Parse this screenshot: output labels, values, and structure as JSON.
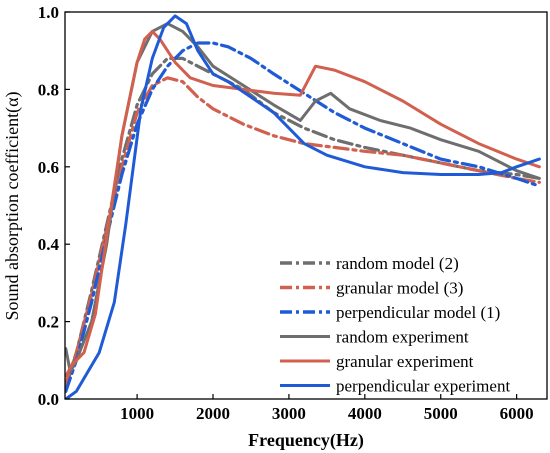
{
  "chart_data": {
    "type": "line",
    "xlabel": "Frequency(Hz)",
    "ylabel": "Sound absorption coefficient(α)",
    "xlim": [
      50,
      6400
    ],
    "ylim": [
      0,
      1.0
    ],
    "x_ticks": [
      1000,
      2000,
      3000,
      4000,
      5000,
      6000
    ],
    "y_ticks": [
      0.0,
      0.2,
      0.4,
      0.6,
      0.8,
      1.0
    ],
    "x_tick_labels": [
      "1000",
      "2000",
      "3000",
      "4000",
      "5000",
      "6000"
    ],
    "y_tick_labels": [
      "0.0",
      "0.2",
      "0.4",
      "0.6",
      "0.8",
      "1.0"
    ],
    "legend_position": "bottom-right",
    "series": [
      {
        "name": "random model (2)",
        "color": "#6e6e6e",
        "style": "dashdot",
        "points": [
          [
            60,
            0.03
          ],
          [
            200,
            0.12
          ],
          [
            400,
            0.28
          ],
          [
            600,
            0.45
          ],
          [
            800,
            0.62
          ],
          [
            1000,
            0.76
          ],
          [
            1200,
            0.84
          ],
          [
            1400,
            0.88
          ],
          [
            1600,
            0.88
          ],
          [
            1800,
            0.86
          ],
          [
            2000,
            0.84
          ],
          [
            2400,
            0.8
          ],
          [
            2800,
            0.74
          ],
          [
            3200,
            0.7
          ],
          [
            3600,
            0.67
          ],
          [
            4000,
            0.65
          ],
          [
            4500,
            0.63
          ],
          [
            5000,
            0.61
          ],
          [
            5500,
            0.59
          ],
          [
            6000,
            0.58
          ],
          [
            6300,
            0.57
          ]
        ]
      },
      {
        "name": "granular model (3)",
        "color": "#d2604f",
        "style": "dashdot",
        "points": [
          [
            60,
            0.04
          ],
          [
            200,
            0.12
          ],
          [
            400,
            0.27
          ],
          [
            600,
            0.44
          ],
          [
            800,
            0.6
          ],
          [
            1000,
            0.74
          ],
          [
            1200,
            0.81
          ],
          [
            1400,
            0.83
          ],
          [
            1600,
            0.82
          ],
          [
            1800,
            0.78
          ],
          [
            2000,
            0.75
          ],
          [
            2400,
            0.71
          ],
          [
            2800,
            0.68
          ],
          [
            3200,
            0.66
          ],
          [
            3600,
            0.65
          ],
          [
            4000,
            0.64
          ],
          [
            4500,
            0.63
          ],
          [
            5000,
            0.61
          ],
          [
            5500,
            0.59
          ],
          [
            6000,
            0.57
          ],
          [
            6300,
            0.56
          ]
        ]
      },
      {
        "name": "perpendicular model (1)",
        "color": "#1f5bd6",
        "style": "dashdot",
        "points": [
          [
            60,
            0.02
          ],
          [
            200,
            0.1
          ],
          [
            400,
            0.25
          ],
          [
            600,
            0.42
          ],
          [
            800,
            0.58
          ],
          [
            1000,
            0.71
          ],
          [
            1200,
            0.8
          ],
          [
            1400,
            0.86
          ],
          [
            1600,
            0.9
          ],
          [
            1800,
            0.92
          ],
          [
            2000,
            0.92
          ],
          [
            2200,
            0.91
          ],
          [
            2500,
            0.88
          ],
          [
            2800,
            0.84
          ],
          [
            3200,
            0.79
          ],
          [
            3600,
            0.74
          ],
          [
            4000,
            0.7
          ],
          [
            4500,
            0.66
          ],
          [
            5000,
            0.62
          ],
          [
            5500,
            0.6
          ],
          [
            6000,
            0.57
          ],
          [
            6300,
            0.55
          ]
        ]
      },
      {
        "name": "random experiment",
        "color": "#6e6e6e",
        "style": "solid",
        "points": [
          [
            60,
            0.13
          ],
          [
            120,
            0.07
          ],
          [
            200,
            0.1
          ],
          [
            400,
            0.2
          ],
          [
            600,
            0.4
          ],
          [
            800,
            0.68
          ],
          [
            1000,
            0.87
          ],
          [
            1200,
            0.95
          ],
          [
            1400,
            0.97
          ],
          [
            1600,
            0.95
          ],
          [
            1800,
            0.91
          ],
          [
            2000,
            0.86
          ],
          [
            2400,
            0.81
          ],
          [
            2800,
            0.76
          ],
          [
            3150,
            0.72
          ],
          [
            3350,
            0.77
          ],
          [
            3550,
            0.79
          ],
          [
            3800,
            0.75
          ],
          [
            4200,
            0.72
          ],
          [
            4600,
            0.7
          ],
          [
            5000,
            0.67
          ],
          [
            5500,
            0.64
          ],
          [
            6000,
            0.59
          ],
          [
            6300,
            0.57
          ]
        ]
      },
      {
        "name": "granular experiment",
        "color": "#d2604f",
        "style": "solid",
        "points": [
          [
            60,
            0.06
          ],
          [
            150,
            0.09
          ],
          [
            300,
            0.12
          ],
          [
            450,
            0.22
          ],
          [
            600,
            0.42
          ],
          [
            800,
            0.68
          ],
          [
            1000,
            0.87
          ],
          [
            1100,
            0.93
          ],
          [
            1200,
            0.95
          ],
          [
            1300,
            0.93
          ],
          [
            1500,
            0.87
          ],
          [
            1700,
            0.83
          ],
          [
            2000,
            0.81
          ],
          [
            2400,
            0.8
          ],
          [
            2800,
            0.79
          ],
          [
            3150,
            0.785
          ],
          [
            3350,
            0.86
          ],
          [
            3600,
            0.85
          ],
          [
            4000,
            0.82
          ],
          [
            4500,
            0.77
          ],
          [
            5000,
            0.71
          ],
          [
            5500,
            0.66
          ],
          [
            6000,
            0.62
          ],
          [
            6300,
            0.6
          ]
        ]
      },
      {
        "name": "perpendicular experiment",
        "color": "#1f5bd6",
        "style": "solid",
        "points": [
          [
            60,
            0.0
          ],
          [
            200,
            0.02
          ],
          [
            350,
            0.07
          ],
          [
            500,
            0.12
          ],
          [
            700,
            0.25
          ],
          [
            850,
            0.45
          ],
          [
            950,
            0.6
          ],
          [
            1050,
            0.75
          ],
          [
            1200,
            0.88
          ],
          [
            1350,
            0.96
          ],
          [
            1500,
            0.99
          ],
          [
            1650,
            0.97
          ],
          [
            1800,
            0.9
          ],
          [
            2000,
            0.84
          ],
          [
            2200,
            0.82
          ],
          [
            2500,
            0.78
          ],
          [
            2800,
            0.74
          ],
          [
            3000,
            0.7
          ],
          [
            3200,
            0.66
          ],
          [
            3500,
            0.63
          ],
          [
            4000,
            0.6
          ],
          [
            4500,
            0.585
          ],
          [
            5000,
            0.58
          ],
          [
            5500,
            0.58
          ],
          [
            5800,
            0.585
          ],
          [
            6000,
            0.6
          ],
          [
            6300,
            0.62
          ]
        ]
      }
    ]
  }
}
